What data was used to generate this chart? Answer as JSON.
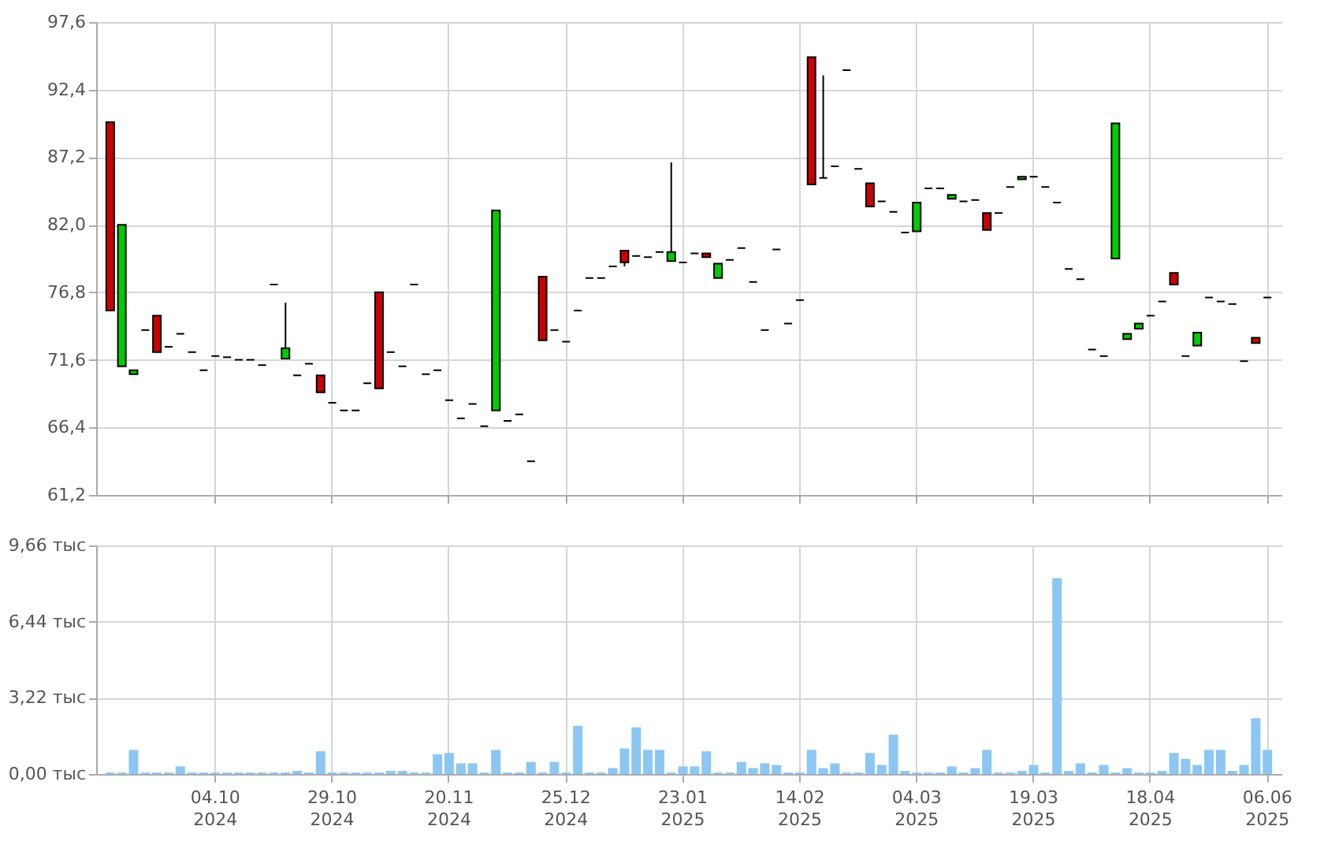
{
  "chart_data": [
    {
      "type": "candlestick",
      "categories": [
        null,
        null,
        null,
        null,
        null,
        null,
        null,
        null,
        null,
        null,
        null,
        null,
        null,
        null,
        null,
        null,
        null,
        null,
        null,
        null,
        null,
        null,
        null,
        null,
        null,
        null,
        null,
        null,
        null,
        null,
        null,
        null,
        null,
        null,
        null,
        null,
        null,
        null,
        null,
        null,
        null,
        null,
        null,
        null,
        null,
        null,
        null,
        null,
        null,
        null,
        null,
        null,
        null,
        null,
        null,
        null,
        null,
        null,
        null,
        null,
        null,
        null,
        null,
        null,
        null,
        null,
        null,
        null,
        null,
        null,
        null,
        null,
        null,
        null,
        null,
        null,
        null,
        null,
        null,
        null,
        null,
        null,
        null,
        null,
        null,
        null,
        null,
        null,
        null,
        null,
        null,
        null,
        null,
        null,
        null,
        null,
        null,
        null,
        null,
        null
      ],
      "ohlc": [
        [
          89.9,
          89.9,
          75.4,
          75.4
        ],
        [
          71.1,
          82.0,
          71.1,
          82.0
        ],
        [
          70.5,
          70.8,
          70.5,
          70.8
        ],
        [
          73.9,
          73.9,
          73.9,
          73.9
        ],
        [
          75.0,
          75.0,
          72.2,
          72.2
        ],
        [
          72.6,
          72.6,
          72.6,
          72.6
        ],
        [
          73.6,
          73.6,
          73.6,
          73.6
        ],
        [
          72.2,
          72.2,
          72.2,
          72.2
        ],
        [
          70.8,
          70.8,
          70.8,
          70.8
        ],
        [
          71.9,
          71.9,
          71.9,
          71.9
        ],
        [
          71.8,
          71.8,
          71.8,
          71.8
        ],
        [
          71.6,
          71.6,
          71.6,
          71.6
        ],
        [
          71.6,
          71.6,
          71.6,
          71.6
        ],
        [
          71.2,
          71.2,
          71.2,
          71.2
        ],
        [
          77.4,
          77.4,
          77.4,
          77.4
        ],
        [
          71.7,
          76.0,
          71.7,
          72.5
        ],
        [
          70.4,
          70.4,
          70.4,
          70.4
        ],
        [
          71.3,
          71.3,
          71.3,
          71.3
        ],
        [
          70.4,
          70.4,
          69.1,
          69.1
        ],
        [
          68.3,
          68.3,
          68.3,
          68.3
        ],
        [
          67.7,
          67.7,
          67.7,
          67.7
        ],
        [
          67.7,
          67.7,
          67.7,
          67.7
        ],
        [
          69.8,
          69.8,
          69.8,
          69.8
        ],
        [
          76.8,
          76.8,
          69.4,
          69.4
        ],
        [
          72.2,
          72.2,
          72.2,
          72.2
        ],
        [
          71.1,
          71.1,
          71.1,
          71.1
        ],
        [
          77.4,
          77.4,
          77.4,
          77.4
        ],
        [
          70.5,
          70.5,
          70.5,
          70.5
        ],
        [
          70.8,
          70.8,
          70.8,
          70.8
        ],
        [
          68.5,
          68.5,
          68.5,
          68.5
        ],
        [
          67.1,
          67.1,
          67.1,
          67.1
        ],
        [
          68.2,
          68.2,
          68.2,
          68.2
        ],
        [
          66.5,
          66.5,
          66.5,
          66.5
        ],
        [
          67.7,
          83.1,
          67.7,
          83.1
        ],
        [
          66.9,
          66.9,
          66.9,
          66.9
        ],
        [
          67.4,
          67.4,
          67.4,
          67.4
        ],
        [
          63.8,
          63.8,
          63.8,
          63.8
        ],
        [
          78.0,
          78.0,
          73.1,
          73.1
        ],
        [
          73.9,
          73.9,
          73.9,
          73.9
        ],
        [
          73.0,
          73.0,
          73.0,
          73.0
        ],
        [
          75.4,
          75.4,
          75.4,
          75.4
        ],
        [
          77.9,
          77.9,
          77.9,
          77.9
        ],
        [
          77.9,
          77.9,
          77.9,
          77.9
        ],
        [
          78.8,
          78.8,
          78.8,
          78.8
        ],
        [
          80.0,
          80.0,
          78.8,
          79.1
        ],
        [
          79.6,
          79.6,
          79.6,
          79.6
        ],
        [
          79.5,
          79.5,
          79.5,
          79.5
        ],
        [
          79.9,
          79.9,
          79.9,
          79.9
        ],
        [
          79.2,
          86.8,
          79.2,
          79.9
        ],
        [
          79.1,
          79.1,
          79.1,
          79.1
        ],
        [
          79.8,
          79.8,
          79.8,
          79.8
        ],
        [
          79.8,
          79.8,
          79.5,
          79.5
        ],
        [
          77.9,
          79.0,
          77.9,
          79.0
        ],
        [
          79.3,
          79.3,
          79.3,
          79.3
        ],
        [
          80.2,
          80.2,
          80.2,
          80.2
        ],
        [
          77.6,
          77.6,
          77.6,
          77.6
        ],
        [
          73.9,
          73.9,
          73.9,
          73.9
        ],
        [
          80.1,
          80.1,
          80.1,
          80.1
        ],
        [
          74.4,
          74.4,
          74.4,
          74.4
        ],
        [
          76.2,
          76.2,
          76.2,
          76.2
        ],
        [
          94.9,
          94.9,
          85.1,
          85.1
        ],
        [
          85.6,
          93.5,
          85.6,
          85.6
        ],
        [
          86.5,
          86.5,
          86.5,
          86.5
        ],
        [
          93.9,
          93.9,
          93.9,
          93.9
        ],
        [
          86.3,
          86.3,
          86.3,
          86.3
        ],
        [
          85.2,
          85.2,
          83.4,
          83.4
        ],
        [
          83.8,
          83.8,
          83.8,
          83.8
        ],
        [
          83.0,
          83.0,
          83.0,
          83.0
        ],
        [
          81.4,
          81.4,
          81.4,
          81.4
        ],
        [
          81.5,
          83.7,
          81.5,
          83.7
        ],
        [
          84.8,
          84.8,
          84.8,
          84.8
        ],
        [
          84.8,
          84.8,
          84.8,
          84.8
        ],
        [
          84.0,
          84.3,
          84.0,
          84.3
        ],
        [
          83.8,
          83.8,
          83.8,
          83.8
        ],
        [
          83.9,
          83.9,
          83.9,
          83.9
        ],
        [
          82.9,
          82.9,
          81.6,
          81.6
        ],
        [
          82.9,
          82.9,
          82.9,
          82.9
        ],
        [
          84.9,
          84.9,
          84.9,
          84.9
        ],
        [
          85.5,
          85.7,
          85.5,
          85.7
        ],
        [
          85.7,
          85.7,
          85.7,
          85.7
        ],
        [
          84.9,
          84.9,
          84.9,
          84.9
        ],
        [
          83.7,
          83.7,
          83.7,
          83.7
        ],
        [
          78.6,
          78.6,
          78.6,
          78.6
        ],
        [
          77.8,
          77.8,
          77.8,
          77.8
        ],
        [
          72.4,
          72.4,
          72.4,
          72.4
        ],
        [
          71.9,
          71.9,
          71.9,
          71.9
        ],
        [
          79.4,
          89.8,
          79.4,
          89.8
        ],
        [
          73.2,
          73.6,
          73.2,
          73.6
        ],
        [
          74.0,
          74.4,
          74.0,
          74.4
        ],
        [
          75.0,
          75.0,
          75.0,
          75.0
        ],
        [
          76.1,
          76.1,
          76.1,
          76.1
        ],
        [
          78.3,
          78.3,
          77.4,
          77.4
        ],
        [
          71.9,
          71.9,
          71.9,
          71.9
        ],
        [
          72.7,
          73.7,
          72.7,
          73.7
        ],
        [
          76.4,
          76.4,
          76.4,
          76.4
        ],
        [
          76.1,
          76.1,
          76.1,
          76.1
        ],
        [
          75.9,
          75.9,
          75.9,
          75.9
        ],
        [
          71.5,
          71.5,
          71.5,
          71.5
        ],
        [
          73.3,
          73.3,
          72.9,
          72.9
        ],
        [
          76.4,
          76.4,
          76.4,
          76.4
        ]
      ],
      "colors": [
        "#cc0000",
        "#00cc00",
        "#00cc00",
        "#000000",
        "#cc0000",
        "#000000",
        "#000000",
        "#000000",
        "#000000",
        "#000000",
        "#000000",
        "#000000",
        "#000000",
        "#000000",
        "#000000",
        "#00cc00",
        "#000000",
        "#000000",
        "#cc0000",
        "#000000",
        "#000000",
        "#000000",
        "#000000",
        "#cc0000",
        "#000000",
        "#000000",
        "#000000",
        "#000000",
        "#000000",
        "#000000",
        "#000000",
        "#000000",
        "#000000",
        "#00cc00",
        "#000000",
        "#000000",
        "#000000",
        "#cc0000",
        "#000000",
        "#000000",
        "#000000",
        "#000000",
        "#000000",
        "#000000",
        "#cc0000",
        "#000000",
        "#000000",
        "#000000",
        "#00cc00",
        "#000000",
        "#000000",
        "#cc0000",
        "#00cc00",
        "#000000",
        "#000000",
        "#000000",
        "#000000",
        "#000000",
        "#000000",
        "#000000",
        "#cc0000",
        "#000000",
        "#000000",
        "#000000",
        "#000000",
        "#cc0000",
        "#000000",
        "#000000",
        "#000000",
        "#00cc00",
        "#000000",
        "#000000",
        "#00cc00",
        "#000000",
        "#000000",
        "#cc0000",
        "#000000",
        "#000000",
        "#00cc00",
        "#000000",
        "#000000",
        "#000000",
        "#000000",
        "#000000",
        "#000000",
        "#000000",
        "#00cc00",
        "#00cc00",
        "#00cc00",
        "#000000",
        "#000000",
        "#cc0000",
        "#000000",
        "#00cc00",
        "#000000",
        "#000000",
        "#000000",
        "#000000",
        "#cc0000",
        "#000000"
      ],
      "ylim": [
        61.2,
        97.6
      ],
      "yticks": [
        {
          "value": 61.2,
          "label": "61,2"
        },
        {
          "value": 66.4,
          "label": "66,4"
        },
        {
          "value": 71.6,
          "label": "71,6"
        },
        {
          "value": 76.8,
          "label": "76,8"
        },
        {
          "value": 82.0,
          "label": "82,0"
        },
        {
          "value": 87.2,
          "label": "87,2"
        },
        {
          "value": 92.4,
          "label": "92,4"
        },
        {
          "value": 97.6,
          "label": "97,6"
        }
      ],
      "grid": true
    },
    {
      "type": "bar",
      "categories": [
        null,
        null,
        null,
        null,
        null,
        null,
        null,
        null,
        null,
        "04.10\n2024",
        null,
        null,
        null,
        null,
        null,
        null,
        null,
        null,
        null,
        "29.10\n2024",
        null,
        null,
        null,
        null,
        null,
        null,
        null,
        null,
        null,
        "20.11\n2024",
        null,
        null,
        null,
        null,
        null,
        null,
        null,
        null,
        null,
        "25.12\n2024",
        null,
        null,
        null,
        null,
        null,
        null,
        null,
        null,
        null,
        "23.01\n2025",
        null,
        null,
        null,
        null,
        null,
        null,
        null,
        null,
        null,
        "14.02\n2025",
        null,
        null,
        null,
        null,
        null,
        null,
        null,
        null,
        null,
        "04.03\n2025",
        null,
        null,
        null,
        null,
        null,
        null,
        null,
        null,
        null,
        "19.03\n2025",
        null,
        null,
        null,
        null,
        null,
        null,
        null,
        null,
        null,
        "18.04\n2025",
        null,
        null,
        null,
        null,
        null,
        null,
        null,
        null,
        null,
        "06.06\n2025"
      ],
      "values": [
        0.06,
        0.06,
        1.02,
        0.06,
        0.06,
        0.06,
        0.32,
        0.06,
        0.06,
        0.06,
        0.06,
        0.06,
        0.06,
        0.06,
        0.06,
        0.06,
        0.13,
        0.06,
        0.96,
        0.06,
        0.06,
        0.06,
        0.06,
        0.06,
        0.13,
        0.13,
        0.06,
        0.06,
        0.83,
        0.89,
        0.45,
        0.45,
        0.06,
        1.02,
        0.06,
        0.06,
        0.51,
        0.06,
        0.51,
        0.06,
        2.04,
        0.06,
        0.06,
        0.25,
        1.08,
        1.97,
        1.02,
        1.02,
        0.06,
        0.32,
        0.32,
        0.96,
        0.06,
        0.06,
        0.51,
        0.25,
        0.45,
        0.38,
        0.06,
        0.06,
        1.02,
        0.25,
        0.45,
        0.06,
        0.06,
        0.89,
        0.38,
        1.66,
        0.13,
        0.06,
        0.06,
        0.06,
        0.32,
        0.06,
        0.25,
        1.02,
        0.06,
        0.06,
        0.13,
        0.38,
        0.06,
        8.28,
        0.13,
        0.45,
        0.06,
        0.38,
        0.06,
        0.25,
        0.06,
        0.06,
        0.13,
        0.89,
        0.64,
        0.38,
        1.02,
        1.02,
        0.13,
        0.38,
        2.36,
        1.02
      ],
      "color": "#8cc6f2",
      "ylim": [
        0,
        9.66
      ],
      "yticks": [
        {
          "value": 0,
          "label": "0,00 тыс"
        },
        {
          "value": 3.22,
          "label": "3,22 тыс"
        },
        {
          "value": 6.44,
          "label": "6,44 тыс"
        },
        {
          "value": 9.66,
          "label": "9,66 тыс"
        }
      ],
      "grid": true
    }
  ]
}
